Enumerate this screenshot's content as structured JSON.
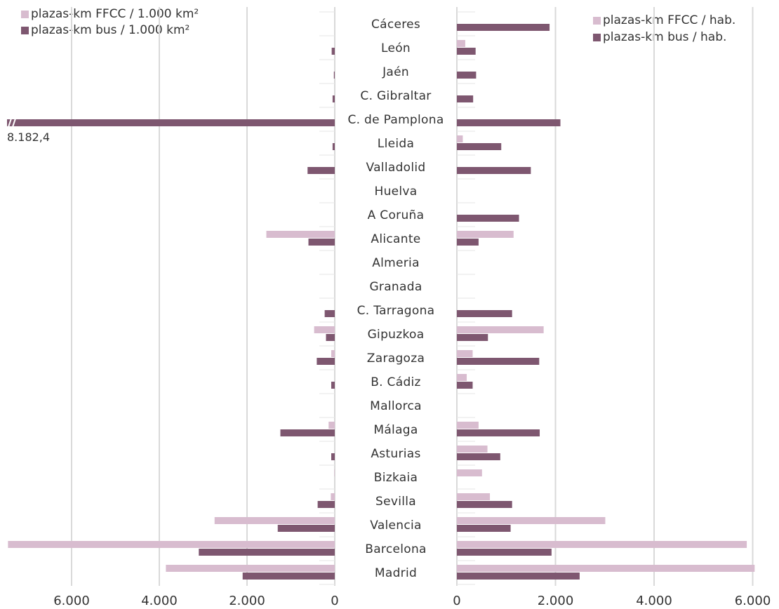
{
  "colors": {
    "ffcc": "#d8bccf",
    "bus": "#7e5770",
    "grid": "#d9d9d9"
  },
  "legend_left": [
    {
      "label": "plazas-km FFCC / 1.000 km²",
      "color": "#d8bccf"
    },
    {
      "label": "plazas-km bus / 1.000 km²",
      "color": "#7e5770"
    }
  ],
  "legend_right": [
    {
      "label": "plazas-km FFCC / hab.",
      "color": "#d8bccf"
    },
    {
      "label": "plazas-km bus / hab.",
      "color": "#7e5770"
    }
  ],
  "chart_data": {
    "type": "bar",
    "orientation": "horizontal-butterfly",
    "categories": [
      "Cáceres",
      "León",
      "Jaén",
      "C. Gibraltar",
      "C. de Pamplona",
      "Lleida",
      "Valladolid",
      "Huelva",
      "A Coruña",
      "Alicante",
      "Almeria",
      "Granada",
      "C. Tarragona",
      "Gipuzkoa",
      "Zaragoza",
      "B. Cádiz",
      "Mallorca",
      "Málaga",
      "Asturias",
      "Bizkaia",
      "Sevilla",
      "Valencia",
      "Barcelona",
      "Madrid"
    ],
    "left_panel": {
      "series": [
        {
          "name": "plazas-km FFCC / 1.000 km²",
          "values": [
            0,
            0,
            0,
            0,
            0,
            0,
            0,
            0,
            0,
            1560,
            0,
            0,
            0,
            470,
            80,
            0,
            0,
            140,
            0,
            10,
            90,
            2740,
            7450,
            3850
          ]
        },
        {
          "name": "plazas-km bus / 1.000 km²",
          "values": [
            0,
            70,
            20,
            50,
            8182.4,
            50,
            620,
            0,
            0,
            600,
            0,
            0,
            230,
            200,
            410,
            80,
            0,
            1240,
            80,
            0,
            390,
            1300,
            3100,
            2100
          ]
        }
      ],
      "xlim": [
        0,
        7500
      ],
      "ticks": [
        "6.000",
        "4.000",
        "2.000",
        "0"
      ],
      "break_label": "8.182,4"
    },
    "right_panel": {
      "series": [
        {
          "name": "plazas-km FFCC / hab.",
          "values": [
            0,
            170,
            0,
            0,
            0,
            120,
            0,
            0,
            0,
            1150,
            0,
            0,
            0,
            1760,
            320,
            200,
            0,
            440,
            620,
            510,
            670,
            3010,
            5880,
            6040
          ]
        },
        {
          "name": "plazas-km bus / hab.",
          "values": [
            1880,
            380,
            390,
            330,
            2100,
            900,
            1500,
            0,
            1260,
            440,
            0,
            0,
            1120,
            630,
            1670,
            320,
            0,
            1680,
            880,
            0,
            1120,
            1090,
            1920,
            2490
          ]
        }
      ],
      "xlim": [
        0,
        6000
      ],
      "ticks": [
        "0",
        "2.000",
        "4.000",
        "6.000"
      ]
    },
    "grid": true
  }
}
